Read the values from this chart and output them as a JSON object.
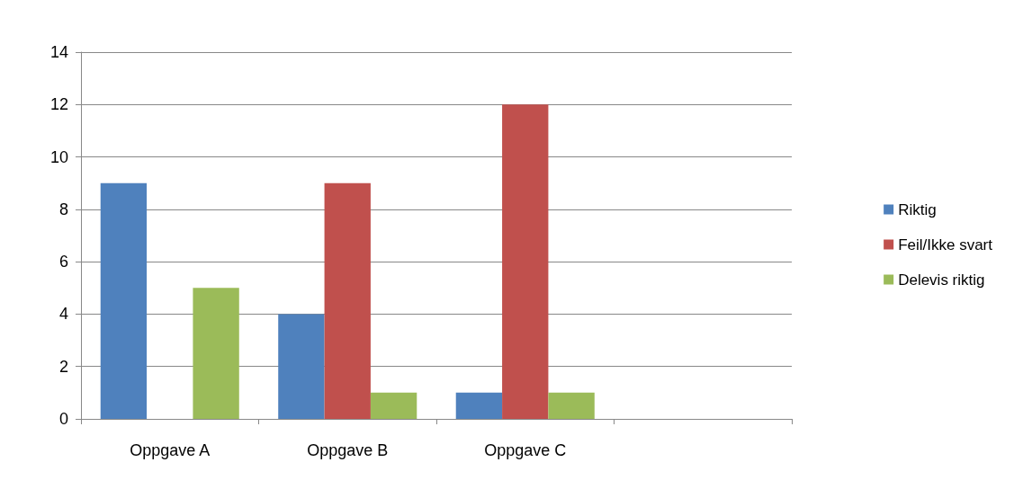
{
  "chart_data": {
    "type": "bar",
    "categories": [
      "Oppgave A",
      "Oppgave B",
      "Oppgave C",
      null
    ],
    "series": [
      {
        "name": "Riktig",
        "color": "#4f81bd",
        "values": [
          9,
          4,
          1,
          null
        ]
      },
      {
        "name": "Feil/Ikke svart",
        "color": "#c0504d",
        "values": [
          0,
          9,
          12,
          null
        ]
      },
      {
        "name": "Delevis riktig",
        "color": "#9bbb59",
        "values": [
          5,
          1,
          1,
          null
        ]
      }
    ],
    "ylim": [
      0,
      14
    ],
    "yticks": [
      0,
      2,
      4,
      6,
      8,
      10,
      12,
      14
    ],
    "grid": "y",
    "legend": "right"
  }
}
